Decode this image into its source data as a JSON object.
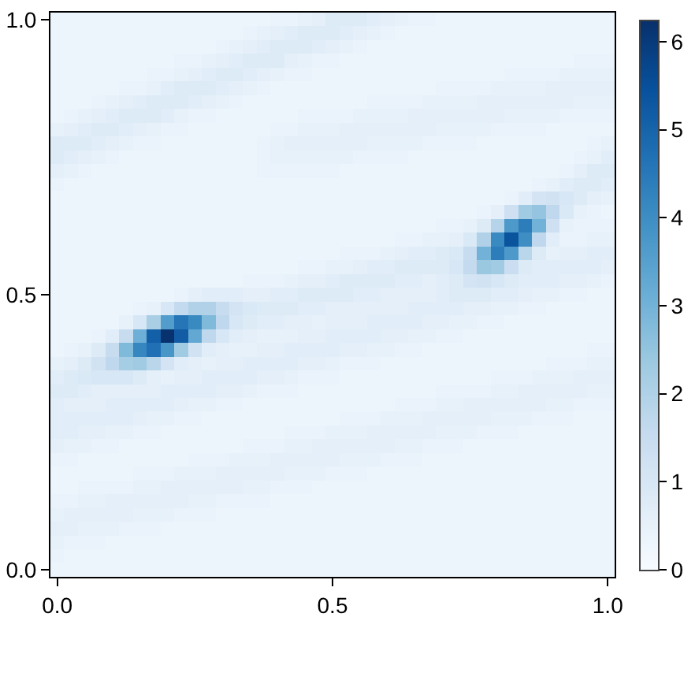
{
  "chart_data": {
    "type": "heatmap",
    "categories": [
      "0.0",
      null,
      null,
      null,
      null,
      null,
      null,
      null,
      null,
      null,
      null,
      null,
      null,
      null,
      null,
      null,
      null,
      null,
      null,
      null,
      "0.5",
      null,
      null,
      null,
      null,
      null,
      null,
      null,
      null,
      null,
      null,
      null,
      null,
      null,
      null,
      null,
      null,
      null,
      null,
      null,
      "1.0"
    ],
    "y_categories": [
      "1.0",
      null,
      null,
      null,
      null,
      null,
      null,
      null,
      null,
      null,
      null,
      null,
      null,
      null,
      null,
      null,
      null,
      null,
      null,
      null,
      "0.5",
      null,
      null,
      null,
      null,
      null,
      null,
      null,
      null,
      null,
      null,
      null,
      null,
      null,
      null,
      null,
      null,
      null,
      null,
      null,
      "0.0"
    ],
    "clim": [
      0,
      6.25
    ],
    "cticks": [
      0,
      1,
      2,
      3,
      4,
      5,
      6
    ],
    "colors": [
      "#f7fbff",
      "#deebf7",
      "#c6dbef",
      "#9ecae1",
      "#6baed6",
      "#4292c6",
      "#2171b5",
      "#08519c",
      "#08306b"
    ],
    "cells": [
      [
        0.3,
        0.3,
        0.3,
        0.3,
        0.3,
        0.3,
        0.3,
        0.3,
        0.3,
        0.3,
        0.3,
        0.3,
        0.3,
        0.3,
        0.3,
        0.3,
        0.4,
        0.4,
        0.5,
        0.6,
        0.8,
        0.8,
        0.8,
        0.7,
        0.6,
        0.5,
        0.4,
        0.4,
        0.3,
        0.3,
        0.3,
        0.3,
        0.3,
        0.3,
        0.3,
        0.3,
        0.3,
        0.3,
        0.3,
        0.3,
        0.3
      ],
      [
        0.3,
        0.3,
        0.3,
        0.3,
        0.3,
        0.3,
        0.3,
        0.3,
        0.3,
        0.3,
        0.3,
        0.3,
        0.3,
        0.3,
        0.4,
        0.5,
        0.6,
        0.7,
        0.8,
        0.8,
        0.8,
        0.7,
        0.6,
        0.5,
        0.4,
        0.3,
        0.3,
        0.3,
        0.3,
        0.3,
        0.3,
        0.3,
        0.3,
        0.3,
        0.3,
        0.3,
        0.3,
        0.3,
        0.3,
        0.3,
        0.3
      ],
      [
        0.3,
        0.3,
        0.3,
        0.3,
        0.3,
        0.3,
        0.3,
        0.3,
        0.3,
        0.3,
        0.3,
        0.3,
        0.4,
        0.5,
        0.6,
        0.7,
        0.8,
        0.8,
        0.8,
        0.7,
        0.6,
        0.5,
        0.4,
        0.3,
        0.3,
        0.3,
        0.3,
        0.3,
        0.3,
        0.3,
        0.3,
        0.3,
        0.3,
        0.3,
        0.3,
        0.3,
        0.3,
        0.3,
        0.3,
        0.3,
        0.3
      ],
      [
        0.3,
        0.3,
        0.3,
        0.3,
        0.3,
        0.3,
        0.3,
        0.3,
        0.3,
        0.4,
        0.4,
        0.5,
        0.6,
        0.7,
        0.8,
        0.8,
        0.8,
        0.6,
        0.5,
        0.4,
        0.4,
        0.3,
        0.3,
        0.3,
        0.3,
        0.3,
        0.3,
        0.3,
        0.3,
        0.3,
        0.3,
        0.3,
        0.3,
        0.3,
        0.3,
        0.3,
        0.3,
        0.3,
        0.4,
        0.4,
        0.4
      ],
      [
        0.3,
        0.3,
        0.3,
        0.3,
        0.3,
        0.3,
        0.3,
        0.4,
        0.4,
        0.5,
        0.6,
        0.7,
        0.8,
        0.8,
        0.7,
        0.6,
        0.5,
        0.4,
        0.4,
        0.3,
        0.3,
        0.3,
        0.3,
        0.3,
        0.3,
        0.3,
        0.3,
        0.3,
        0.3,
        0.3,
        0.3,
        0.3,
        0.3,
        0.4,
        0.4,
        0.4,
        0.4,
        0.5,
        0.5,
        0.5,
        0.5
      ],
      [
        0.3,
        0.3,
        0.3,
        0.3,
        0.3,
        0.4,
        0.4,
        0.5,
        0.7,
        0.8,
        0.8,
        0.8,
        0.7,
        0.6,
        0.5,
        0.4,
        0.3,
        0.3,
        0.3,
        0.3,
        0.3,
        0.3,
        0.3,
        0.3,
        0.3,
        0.3,
        0.3,
        0.3,
        0.4,
        0.4,
        0.4,
        0.4,
        0.5,
        0.5,
        0.5,
        0.5,
        0.6,
        0.6,
        0.6,
        0.6,
        0.6
      ],
      [
        0.3,
        0.3,
        0.3,
        0.4,
        0.5,
        0.6,
        0.7,
        0.8,
        0.8,
        0.8,
        0.7,
        0.6,
        0.5,
        0.4,
        0.3,
        0.3,
        0.3,
        0.3,
        0.3,
        0.3,
        0.3,
        0.3,
        0.3,
        0.4,
        0.4,
        0.4,
        0.4,
        0.5,
        0.5,
        0.5,
        0.5,
        0.6,
        0.6,
        0.6,
        0.6,
        0.6,
        0.6,
        0.6,
        0.5,
        0.5,
        0.5
      ],
      [
        0.3,
        0.4,
        0.5,
        0.6,
        0.7,
        0.8,
        0.8,
        0.8,
        0.7,
        0.5,
        0.4,
        0.4,
        0.3,
        0.3,
        0.3,
        0.3,
        0.3,
        0.3,
        0.4,
        0.4,
        0.4,
        0.4,
        0.5,
        0.5,
        0.5,
        0.5,
        0.6,
        0.6,
        0.6,
        0.6,
        0.6,
        0.6,
        0.6,
        0.5,
        0.5,
        0.5,
        0.5,
        0.4,
        0.4,
        0.4,
        0.4
      ],
      [
        0.5,
        0.6,
        0.7,
        0.8,
        0.8,
        0.7,
        0.6,
        0.5,
        0.4,
        0.4,
        0.3,
        0.3,
        0.3,
        0.3,
        0.3,
        0.3,
        0.4,
        0.4,
        0.5,
        0.5,
        0.5,
        0.6,
        0.6,
        0.6,
        0.6,
        0.6,
        0.6,
        0.6,
        0.5,
        0.5,
        0.5,
        0.5,
        0.4,
        0.4,
        0.4,
        0.4,
        0.3,
        0.3,
        0.3,
        0.3,
        0.3
      ],
      [
        0.8,
        0.8,
        0.8,
        0.7,
        0.6,
        0.5,
        0.4,
        0.4,
        0.3,
        0.3,
        0.3,
        0.3,
        0.3,
        0.3,
        0.3,
        0.4,
        0.5,
        0.6,
        0.6,
        0.6,
        0.6,
        0.6,
        0.6,
        0.5,
        0.5,
        0.5,
        0.5,
        0.4,
        0.4,
        0.4,
        0.4,
        0.3,
        0.3,
        0.3,
        0.3,
        0.3,
        0.3,
        0.3,
        0.3,
        0.4,
        0.5
      ],
      [
        0.8,
        0.7,
        0.6,
        0.5,
        0.4,
        0.3,
        0.3,
        0.3,
        0.3,
        0.3,
        0.3,
        0.3,
        0.3,
        0.3,
        0.3,
        0.4,
        0.5,
        0.5,
        0.5,
        0.5,
        0.5,
        0.5,
        0.4,
        0.4,
        0.4,
        0.4,
        0.3,
        0.3,
        0.3,
        0.3,
        0.3,
        0.3,
        0.3,
        0.3,
        0.3,
        0.3,
        0.3,
        0.3,
        0.4,
        0.5,
        0.7
      ],
      [
        0.6,
        0.5,
        0.4,
        0.3,
        0.3,
        0.3,
        0.3,
        0.3,
        0.3,
        0.3,
        0.3,
        0.3,
        0.3,
        0.3,
        0.3,
        0.4,
        0.4,
        0.4,
        0.4,
        0.4,
        0.4,
        0.3,
        0.3,
        0.3,
        0.3,
        0.3,
        0.3,
        0.3,
        0.3,
        0.3,
        0.3,
        0.3,
        0.3,
        0.3,
        0.3,
        0.3,
        0.3,
        0.4,
        0.6,
        0.8,
        0.8
      ],
      [
        0.4,
        0.3,
        0.3,
        0.3,
        0.3,
        0.3,
        0.3,
        0.3,
        0.3,
        0.3,
        0.3,
        0.3,
        0.3,
        0.3,
        0.3,
        0.3,
        0.3,
        0.3,
        0.3,
        0.3,
        0.3,
        0.3,
        0.3,
        0.3,
        0.3,
        0.3,
        0.3,
        0.3,
        0.3,
        0.3,
        0.3,
        0.3,
        0.3,
        0.3,
        0.3,
        0.4,
        0.5,
        0.7,
        0.8,
        0.8,
        0.7
      ],
      [
        0.3,
        0.3,
        0.3,
        0.3,
        0.3,
        0.3,
        0.3,
        0.3,
        0.3,
        0.3,
        0.3,
        0.3,
        0.3,
        0.3,
        0.3,
        0.3,
        0.3,
        0.3,
        0.3,
        0.3,
        0.3,
        0.3,
        0.3,
        0.3,
        0.3,
        0.3,
        0.3,
        0.3,
        0.3,
        0.3,
        0.3,
        0.3,
        0.3,
        0.4,
        0.7,
        1.1,
        1.2,
        1.0,
        0.8,
        0.6,
        0.5
      ],
      [
        0.3,
        0.3,
        0.3,
        0.3,
        0.3,
        0.3,
        0.3,
        0.3,
        0.3,
        0.3,
        0.3,
        0.3,
        0.3,
        0.3,
        0.3,
        0.3,
        0.3,
        0.3,
        0.3,
        0.3,
        0.3,
        0.3,
        0.3,
        0.3,
        0.3,
        0.3,
        0.3,
        0.3,
        0.3,
        0.3,
        0.3,
        0.4,
        0.6,
        1.3,
        2.3,
        2.5,
        1.7,
        0.9,
        0.5,
        0.4,
        0.3
      ],
      [
        0.3,
        0.3,
        0.3,
        0.3,
        0.3,
        0.3,
        0.3,
        0.3,
        0.3,
        0.3,
        0.3,
        0.3,
        0.3,
        0.3,
        0.3,
        0.3,
        0.3,
        0.3,
        0.3,
        0.3,
        0.3,
        0.3,
        0.3,
        0.3,
        0.3,
        0.3,
        0.3,
        0.3,
        0.4,
        0.4,
        0.5,
        0.8,
        1.9,
        3.7,
        4.4,
        3.0,
        1.3,
        0.5,
        0.4,
        0.4,
        0.4
      ],
      [
        0.3,
        0.3,
        0.3,
        0.3,
        0.3,
        0.3,
        0.3,
        0.3,
        0.3,
        0.3,
        0.3,
        0.3,
        0.3,
        0.3,
        0.3,
        0.3,
        0.3,
        0.3,
        0.3,
        0.3,
        0.3,
        0.3,
        0.3,
        0.3,
        0.3,
        0.4,
        0.4,
        0.5,
        0.5,
        0.6,
        0.9,
        2.0,
        4.1,
        5.4,
        4.0,
        1.7,
        0.7,
        0.4,
        0.4,
        0.5,
        0.5
      ],
      [
        0.3,
        0.3,
        0.3,
        0.3,
        0.3,
        0.3,
        0.3,
        0.3,
        0.3,
        0.3,
        0.3,
        0.3,
        0.3,
        0.3,
        0.3,
        0.3,
        0.3,
        0.3,
        0.3,
        0.3,
        0.3,
        0.4,
        0.4,
        0.4,
        0.5,
        0.6,
        0.7,
        0.7,
        0.8,
        0.9,
        1.5,
        3.0,
        4.4,
        3.7,
        1.8,
        0.8,
        0.5,
        0.6,
        0.6,
        0.7,
        0.7
      ],
      [
        0.3,
        0.3,
        0.3,
        0.3,
        0.3,
        0.3,
        0.3,
        0.3,
        0.3,
        0.3,
        0.3,
        0.3,
        0.3,
        0.3,
        0.3,
        0.3,
        0.3,
        0.3,
        0.4,
        0.4,
        0.5,
        0.5,
        0.6,
        0.7,
        0.7,
        0.8,
        0.8,
        0.8,
        0.8,
        1.0,
        1.6,
        2.4,
        2.3,
        1.4,
        0.8,
        0.7,
        0.7,
        0.7,
        0.7,
        0.7,
        0.6
      ],
      [
        0.3,
        0.3,
        0.3,
        0.3,
        0.3,
        0.3,
        0.3,
        0.3,
        0.3,
        0.3,
        0.3,
        0.3,
        0.3,
        0.3,
        0.4,
        0.4,
        0.4,
        0.5,
        0.6,
        0.6,
        0.7,
        0.8,
        0.8,
        0.8,
        0.8,
        0.7,
        0.7,
        0.6,
        0.7,
        0.8,
        1.1,
        1.2,
        1.0,
        0.8,
        0.7,
        0.7,
        0.7,
        0.6,
        0.6,
        0.5,
        0.4
      ],
      [
        0.3,
        0.3,
        0.3,
        0.3,
        0.3,
        0.3,
        0.3,
        0.3,
        0.3,
        0.4,
        0.6,
        0.7,
        0.7,
        0.7,
        0.6,
        0.6,
        0.7,
        0.7,
        0.8,
        0.8,
        0.8,
        0.8,
        0.7,
        0.7,
        0.6,
        0.6,
        0.6,
        0.6,
        0.7,
        0.8,
        0.8,
        0.8,
        0.7,
        0.7,
        0.6,
        0.5,
        0.5,
        0.4,
        0.4,
        0.3,
        0.3
      ],
      [
        0.3,
        0.3,
        0.3,
        0.3,
        0.3,
        0.3,
        0.4,
        0.5,
        1.0,
        1.6,
        2.0,
        2.0,
        1.5,
        1.1,
        0.9,
        0.8,
        0.8,
        0.8,
        0.7,
        0.7,
        0.6,
        0.6,
        0.6,
        0.6,
        0.6,
        0.6,
        0.7,
        0.7,
        0.7,
        0.7,
        0.6,
        0.6,
        0.5,
        0.5,
        0.4,
        0.4,
        0.3,
        0.3,
        0.3,
        0.3,
        0.3
      ],
      [
        0.3,
        0.3,
        0.3,
        0.3,
        0.3,
        0.5,
        1.0,
        2.1,
        3.6,
        4.6,
        4.1,
        2.8,
        1.7,
        1.0,
        0.8,
        0.7,
        0.7,
        0.6,
        0.6,
        0.5,
        0.6,
        0.6,
        0.6,
        0.7,
        0.7,
        0.7,
        0.7,
        0.6,
        0.6,
        0.5,
        0.5,
        0.4,
        0.4,
        0.3,
        0.3,
        0.3,
        0.3,
        0.3,
        0.3,
        0.3,
        0.3
      ],
      [
        0.3,
        0.3,
        0.3,
        0.4,
        0.7,
        1.5,
        3.1,
        5.1,
        6.2,
        5.2,
        3.3,
        1.7,
        1.0,
        0.7,
        0.6,
        0.5,
        0.5,
        0.5,
        0.6,
        0.6,
        0.7,
        0.7,
        0.7,
        0.7,
        0.6,
        0.6,
        0.5,
        0.5,
        0.4,
        0.4,
        0.3,
        0.3,
        0.3,
        0.3,
        0.3,
        0.3,
        0.3,
        0.3,
        0.3,
        0.3,
        0.3
      ],
      [
        0.3,
        0.4,
        0.5,
        0.8,
        1.5,
        2.8,
        4.2,
        4.7,
        3.8,
        2.3,
        1.2,
        0.7,
        0.6,
        0.5,
        0.5,
        0.6,
        0.6,
        0.7,
        0.7,
        0.7,
        0.7,
        0.6,
        0.6,
        0.5,
        0.5,
        0.4,
        0.4,
        0.3,
        0.3,
        0.3,
        0.3,
        0.3,
        0.3,
        0.3,
        0.3,
        0.3,
        0.3,
        0.3,
        0.3,
        0.4,
        0.4
      ],
      [
        0.5,
        0.6,
        0.8,
        1.2,
        1.7,
        2.2,
        2.3,
        1.8,
        1.1,
        0.7,
        0.6,
        0.5,
        0.6,
        0.6,
        0.7,
        0.7,
        0.7,
        0.7,
        0.6,
        0.6,
        0.5,
        0.4,
        0.4,
        0.4,
        0.3,
        0.3,
        0.3,
        0.3,
        0.3,
        0.3,
        0.3,
        0.3,
        0.3,
        0.3,
        0.3,
        0.3,
        0.4,
        0.4,
        0.4,
        0.5,
        0.5
      ],
      [
        0.7,
        0.8,
        0.9,
        1.0,
        1.0,
        1.0,
        0.8,
        0.6,
        0.5,
        0.6,
        0.6,
        0.7,
        0.7,
        0.7,
        0.7,
        0.6,
        0.6,
        0.5,
        0.4,
        0.4,
        0.4,
        0.3,
        0.3,
        0.3,
        0.3,
        0.3,
        0.3,
        0.3,
        0.3,
        0.3,
        0.3,
        0.3,
        0.4,
        0.4,
        0.4,
        0.5,
        0.5,
        0.5,
        0.6,
        0.6,
        0.6
      ],
      [
        0.8,
        0.8,
        0.7,
        0.6,
        0.6,
        0.6,
        0.6,
        0.6,
        0.7,
        0.7,
        0.7,
        0.7,
        0.6,
        0.6,
        0.5,
        0.4,
        0.4,
        0.4,
        0.3,
        0.3,
        0.3,
        0.3,
        0.3,
        0.3,
        0.3,
        0.3,
        0.3,
        0.3,
        0.4,
        0.4,
        0.4,
        0.4,
        0.5,
        0.5,
        0.6,
        0.6,
        0.6,
        0.6,
        0.6,
        0.5,
        0.5
      ],
      [
        0.7,
        0.6,
        0.6,
        0.6,
        0.7,
        0.7,
        0.7,
        0.7,
        0.7,
        0.6,
        0.5,
        0.5,
        0.4,
        0.4,
        0.3,
        0.3,
        0.3,
        0.3,
        0.3,
        0.3,
        0.3,
        0.3,
        0.3,
        0.3,
        0.3,
        0.4,
        0.4,
        0.4,
        0.5,
        0.5,
        0.6,
        0.6,
        0.6,
        0.6,
        0.6,
        0.6,
        0.5,
        0.5,
        0.4,
        0.4,
        0.4
      ],
      [
        0.7,
        0.7,
        0.7,
        0.7,
        0.7,
        0.7,
        0.6,
        0.5,
        0.5,
        0.4,
        0.4,
        0.3,
        0.3,
        0.3,
        0.3,
        0.3,
        0.3,
        0.3,
        0.3,
        0.3,
        0.3,
        0.4,
        0.4,
        0.4,
        0.5,
        0.5,
        0.5,
        0.6,
        0.6,
        0.6,
        0.6,
        0.6,
        0.5,
        0.5,
        0.5,
        0.4,
        0.4,
        0.4,
        0.3,
        0.3,
        0.3
      ],
      [
        0.7,
        0.7,
        0.6,
        0.6,
        0.5,
        0.5,
        0.4,
        0.4,
        0.3,
        0.3,
        0.3,
        0.3,
        0.3,
        0.3,
        0.3,
        0.3,
        0.3,
        0.4,
        0.4,
        0.4,
        0.5,
        0.5,
        0.5,
        0.6,
        0.6,
        0.6,
        0.6,
        0.6,
        0.5,
        0.5,
        0.5,
        0.4,
        0.4,
        0.4,
        0.3,
        0.3,
        0.3,
        0.3,
        0.3,
        0.3,
        0.3
      ],
      [
        0.6,
        0.5,
        0.5,
        0.4,
        0.4,
        0.3,
        0.3,
        0.3,
        0.3,
        0.3,
        0.3,
        0.3,
        0.3,
        0.3,
        0.4,
        0.4,
        0.4,
        0.5,
        0.5,
        0.6,
        0.6,
        0.6,
        0.6,
        0.6,
        0.6,
        0.5,
        0.5,
        0.4,
        0.4,
        0.4,
        0.3,
        0.3,
        0.3,
        0.3,
        0.3,
        0.3,
        0.3,
        0.3,
        0.3,
        0.3,
        0.3
      ],
      [
        0.4,
        0.4,
        0.3,
        0.3,
        0.3,
        0.3,
        0.3,
        0.3,
        0.3,
        0.3,
        0.4,
        0.4,
        0.4,
        0.5,
        0.5,
        0.5,
        0.6,
        0.6,
        0.6,
        0.6,
        0.6,
        0.5,
        0.5,
        0.5,
        0.4,
        0.4,
        0.4,
        0.3,
        0.3,
        0.3,
        0.3,
        0.3,
        0.3,
        0.3,
        0.3,
        0.3,
        0.3,
        0.3,
        0.3,
        0.3,
        0.3
      ],
      [
        0.3,
        0.3,
        0.3,
        0.3,
        0.3,
        0.3,
        0.4,
        0.4,
        0.4,
        0.5,
        0.5,
        0.5,
        0.6,
        0.6,
        0.6,
        0.6,
        0.6,
        0.5,
        0.5,
        0.5,
        0.4,
        0.4,
        0.4,
        0.3,
        0.3,
        0.3,
        0.3,
        0.3,
        0.3,
        0.3,
        0.3,
        0.3,
        0.3,
        0.3,
        0.3,
        0.3,
        0.3,
        0.3,
        0.3,
        0.3,
        0.3
      ],
      [
        0.3,
        0.3,
        0.4,
        0.4,
        0.4,
        0.4,
        0.5,
        0.5,
        0.6,
        0.6,
        0.6,
        0.6,
        0.6,
        0.6,
        0.5,
        0.5,
        0.4,
        0.4,
        0.4,
        0.3,
        0.3,
        0.3,
        0.3,
        0.3,
        0.3,
        0.3,
        0.3,
        0.3,
        0.3,
        0.3,
        0.3,
        0.3,
        0.3,
        0.3,
        0.3,
        0.3,
        0.3,
        0.3,
        0.3,
        0.3,
        0.3
      ],
      [
        0.4,
        0.4,
        0.5,
        0.5,
        0.6,
        0.6,
        0.6,
        0.6,
        0.6,
        0.6,
        0.5,
        0.5,
        0.4,
        0.4,
        0.4,
        0.4,
        0.3,
        0.3,
        0.3,
        0.3,
        0.3,
        0.3,
        0.3,
        0.3,
        0.3,
        0.3,
        0.3,
        0.3,
        0.3,
        0.3,
        0.3,
        0.3,
        0.3,
        0.3,
        0.3,
        0.3,
        0.3,
        0.3,
        0.3,
        0.3,
        0.3
      ],
      [
        0.5,
        0.6,
        0.6,
        0.6,
        0.6,
        0.6,
        0.5,
        0.5,
        0.5,
        0.4,
        0.4,
        0.4,
        0.3,
        0.3,
        0.3,
        0.3,
        0.3,
        0.3,
        0.3,
        0.3,
        0.3,
        0.3,
        0.3,
        0.3,
        0.3,
        0.3,
        0.3,
        0.3,
        0.3,
        0.3,
        0.3,
        0.3,
        0.3,
        0.3,
        0.3,
        0.3,
        0.3,
        0.3,
        0.3,
        0.3,
        0.3
      ],
      [
        0.6,
        0.6,
        0.5,
        0.5,
        0.5,
        0.4,
        0.4,
        0.4,
        0.3,
        0.3,
        0.3,
        0.3,
        0.3,
        0.3,
        0.3,
        0.3,
        0.3,
        0.3,
        0.3,
        0.3,
        0.3,
        0.3,
        0.3,
        0.3,
        0.3,
        0.3,
        0.3,
        0.3,
        0.3,
        0.3,
        0.3,
        0.3,
        0.3,
        0.3,
        0.3,
        0.3,
        0.3,
        0.3,
        0.3,
        0.3,
        0.3
      ],
      [
        0.5,
        0.4,
        0.4,
        0.4,
        0.3,
        0.3,
        0.3,
        0.3,
        0.3,
        0.3,
        0.3,
        0.3,
        0.3,
        0.3,
        0.3,
        0.3,
        0.3,
        0.3,
        0.3,
        0.3,
        0.3,
        0.3,
        0.3,
        0.3,
        0.3,
        0.3,
        0.3,
        0.3,
        0.3,
        0.3,
        0.3,
        0.3,
        0.3,
        0.3,
        0.3,
        0.3,
        0.3,
        0.3,
        0.3,
        0.3,
        0.3
      ],
      [
        0.4,
        0.3,
        0.3,
        0.3,
        0.3,
        0.3,
        0.3,
        0.3,
        0.3,
        0.3,
        0.3,
        0.3,
        0.3,
        0.3,
        0.3,
        0.3,
        0.3,
        0.3,
        0.3,
        0.3,
        0.3,
        0.3,
        0.3,
        0.3,
        0.3,
        0.3,
        0.3,
        0.3,
        0.3,
        0.3,
        0.3,
        0.3,
        0.3,
        0.3,
        0.3,
        0.3,
        0.3,
        0.3,
        0.3,
        0.3,
        0.3
      ],
      [
        0.3,
        0.3,
        0.3,
        0.3,
        0.3,
        0.3,
        0.3,
        0.3,
        0.3,
        0.3,
        0.3,
        0.3,
        0.3,
        0.3,
        0.3,
        0.3,
        0.3,
        0.3,
        0.3,
        0.3,
        0.3,
        0.3,
        0.3,
        0.3,
        0.3,
        0.3,
        0.3,
        0.3,
        0.3,
        0.3,
        0.3,
        0.3,
        0.3,
        0.3,
        0.3,
        0.3,
        0.3,
        0.3,
        0.3,
        0.3,
        0.3
      ]
    ]
  }
}
